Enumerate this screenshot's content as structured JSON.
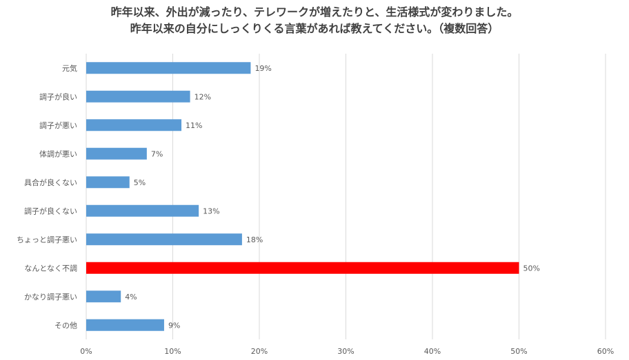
{
  "chart_data": {
    "type": "bar",
    "orientation": "horizontal",
    "title": [
      "昨年以来、外出が減ったり、テレワークが増えたりと、生活様式が変わりました。",
      "昨年以来の自分にしっくりくる言葉があれば教えてください。（複数回答）"
    ],
    "categories": [
      "元気",
      "調子が良い",
      "調子が悪い",
      "体調が悪い",
      "具合が良くない",
      "調子が良くない",
      "ちょっと調子悪い",
      "なんとなく不調",
      "かなり調子悪い",
      "その他"
    ],
    "values": [
      19,
      12,
      11,
      7,
      5,
      13,
      18,
      50,
      4,
      9
    ],
    "value_labels": [
      "19%",
      "12%",
      "11%",
      "7%",
      "5%",
      "13%",
      "18%",
      "50%",
      "4%",
      "9%"
    ],
    "highlight_index": 7,
    "xlim": [
      0,
      60
    ],
    "xticks": [
      0,
      10,
      20,
      30,
      40,
      50,
      60
    ],
    "xtick_labels": [
      "0%",
      "10%",
      "20%",
      "30%",
      "40%",
      "50%",
      "60%"
    ],
    "grid": "vertical",
    "legend": "none",
    "colors": {
      "bar": "#5b9bd5",
      "highlight": "#ff0000",
      "grid": "#d9d9d9",
      "text": "#595959"
    }
  }
}
